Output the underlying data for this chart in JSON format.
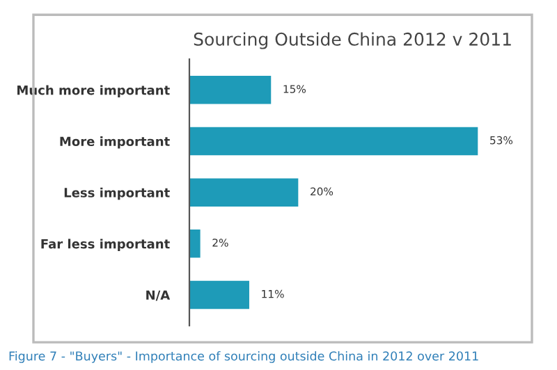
{
  "chart_data": {
    "type": "bar",
    "orientation": "horizontal",
    "title": "Sourcing Outside China 2012 v 2011",
    "categories": [
      "Much more important",
      "More important",
      "Less important",
      "Far less important",
      "N/A"
    ],
    "values": [
      15,
      53,
      20,
      2,
      11
    ],
    "value_labels": [
      "15%",
      "53%",
      "20%",
      "2%",
      "11%"
    ],
    "color": "#1e9bb8",
    "annotations": [
      "Figure 7 - \"Buyers\" - Importance of sourcing outside China in 2012 over 2011"
    ]
  }
}
